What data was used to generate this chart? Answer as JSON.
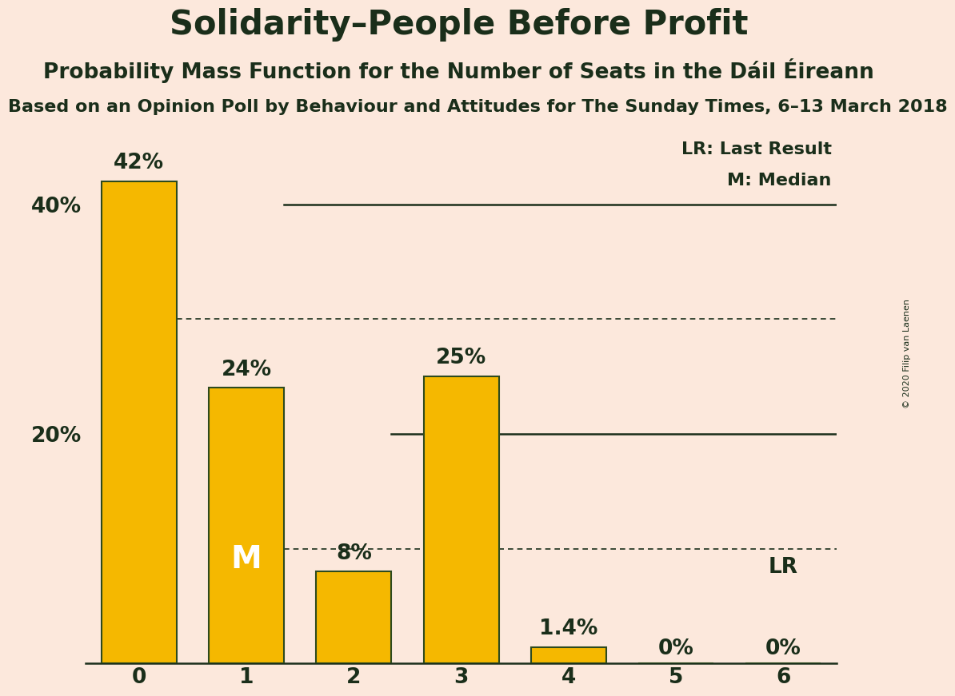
{
  "title": "Solidarity–People Before Profit",
  "subtitle": "Probability Mass Function for the Number of Seats in the Dáil Éireann",
  "subsubtitle": "Based on an Opinion Poll by Behaviour and Attitudes for The Sunday Times, 6–13 March 2018",
  "copyright": "© 2020 Filip van Laenen",
  "categories": [
    0,
    1,
    2,
    3,
    4,
    5,
    6
  ],
  "values": [
    0.42,
    0.24,
    0.08,
    0.25,
    0.014,
    0.0,
    0.0
  ],
  "labels": [
    "42%",
    "24%",
    "8%",
    "25%",
    "1.4%",
    "0%",
    "0%"
  ],
  "bar_color": "#F5B800",
  "bar_edge_color": "#2d4a1e",
  "background_color": "#fce8dc",
  "text_color": "#1a2e1a",
  "median_bar": 1,
  "last_result_bar": 6,
  "solid_hline_y": 0.4,
  "solid_hline_x_start": 1.35,
  "solid_hline2_y": 0.2,
  "solid_hline2_x_start": 2.35,
  "dotted_hline_y1": 0.3,
  "dotted_hline_y2": 0.1,
  "ylim": [
    0,
    0.46
  ],
  "xlim": [
    -0.5,
    6.5
  ],
  "yticks": [
    0.2,
    0.4
  ],
  "ytick_labels": [
    "20%",
    "40%"
  ],
  "title_fontsize": 30,
  "subtitle_fontsize": 19,
  "subsubtitle_fontsize": 16,
  "bar_label_fontsize": 19,
  "median_label_fontsize": 28,
  "legend_fontsize": 16,
  "copyright_fontsize": 8
}
